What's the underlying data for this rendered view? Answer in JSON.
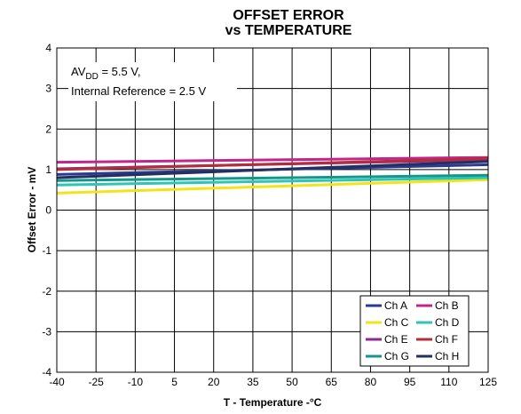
{
  "chart_data": {
    "type": "line",
    "title": "OFFSET ERROR",
    "subtitle": "vs TEMPERATURE",
    "xlabel": "T - Temperature -°C",
    "ylabel": "Offset Error - mV",
    "xlim": [
      -40,
      125
    ],
    "ylim": [
      -4,
      4
    ],
    "xticks": [
      "-40",
      "-25",
      "-10",
      "5",
      "20",
      "35",
      "50",
      "65",
      "80",
      "95",
      "110",
      "125"
    ],
    "yticks": [
      "-4",
      "-3",
      "-2",
      "-1",
      "0",
      "1",
      "2",
      "3",
      "4"
    ],
    "grid": true,
    "legend_position": "bottom-right",
    "annotation": {
      "line1_prefix": "AV",
      "line1_sub": "DD",
      "line1_suffix": " = 5.5 V,",
      "line2": "Internal Reference = 2.5 V"
    },
    "x": [
      -40,
      125
    ],
    "series": [
      {
        "name": "Ch A",
        "color": "#2b3990",
        "values": [
          0.88,
          1.12
        ]
      },
      {
        "name": "Ch B",
        "color": "#c2268a",
        "values": [
          1.18,
          1.3
        ]
      },
      {
        "name": "Ch C",
        "color": "#f2e41a",
        "values": [
          0.42,
          0.75
        ]
      },
      {
        "name": "Ch D",
        "color": "#2ec4b6",
        "values": [
          0.62,
          0.8
        ]
      },
      {
        "name": "Ch E",
        "color": "#8b2a8f",
        "values": [
          1.02,
          1.24
        ]
      },
      {
        "name": "Ch F",
        "color": "#b32d3a",
        "values": [
          1.0,
          1.27
        ]
      },
      {
        "name": "Ch G",
        "color": "#12978a",
        "values": [
          0.73,
          0.86
        ]
      },
      {
        "name": "Ch H",
        "color": "#23305f",
        "values": [
          0.8,
          1.2
        ]
      }
    ]
  }
}
